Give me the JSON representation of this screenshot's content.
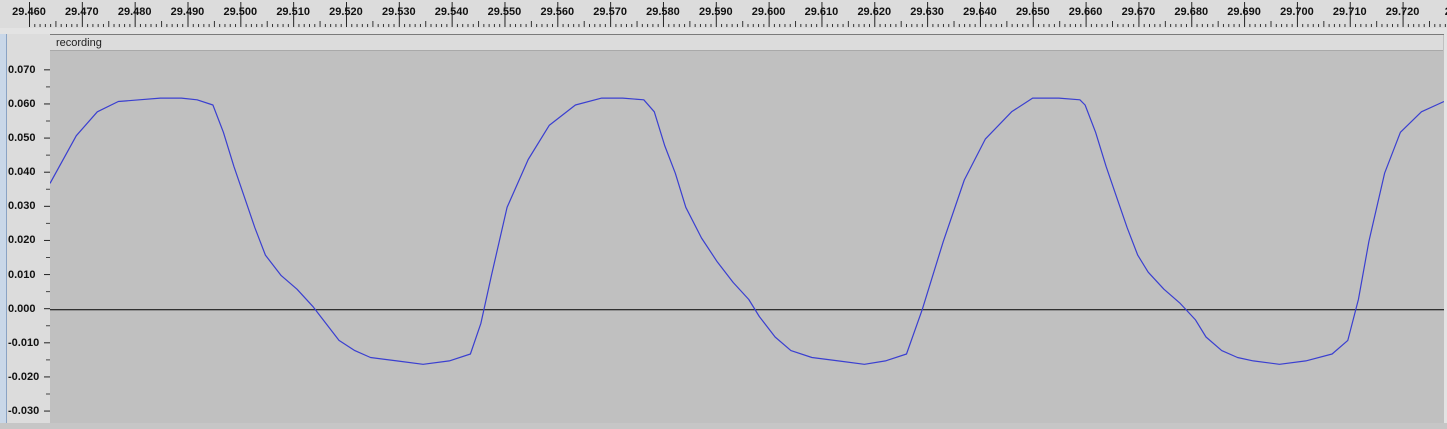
{
  "ruler": {
    "labels": [
      "29.460",
      "29.470",
      "29.480",
      "29.490",
      "29.500",
      "29.510",
      "29.520",
      "29.530",
      "29.540",
      "29.550",
      "29.560",
      "29.570",
      "29.580",
      "29.590",
      "29.600",
      "29.610",
      "29.620",
      "29.630",
      "29.640",
      "29.650",
      "29.660",
      "29.670",
      "29.680",
      "29.690",
      "29.700",
      "29.710",
      "29.720",
      "29.7"
    ]
  },
  "vertical_scale": {
    "labels": [
      "0.070",
      "0.060",
      "0.050",
      "0.040",
      "0.030",
      "0.020",
      "0.010",
      "0.000",
      "-0.010",
      "-0.020",
      "-0.030"
    ]
  },
  "track": {
    "name": "recording",
    "waveform_color": "#3a3fd0",
    "background_color": "#c0c0c0",
    "zero_line_color": "#000000"
  },
  "chart_data": {
    "type": "line",
    "xlim": [
      29.459,
      29.7243
    ],
    "ylim": [
      -0.0335,
      0.0805
    ],
    "x": [
      29.459,
      29.464,
      29.468,
      29.472,
      29.476,
      29.48,
      29.484,
      29.487,
      29.49,
      29.492,
      29.494,
      29.496,
      29.498,
      29.5,
      29.503,
      29.506,
      29.509,
      29.511,
      29.514,
      29.517,
      29.52,
      29.525,
      29.53,
      29.535,
      29.539,
      29.541,
      29.543,
      29.546,
      29.55,
      29.554,
      29.559,
      29.564,
      29.568,
      29.572,
      29.574,
      29.576,
      29.578,
      29.58,
      29.583,
      29.586,
      29.589,
      29.592,
      29.594,
      29.597,
      29.6,
      29.604,
      29.609,
      29.614,
      29.618,
      29.622,
      29.625,
      29.629,
      29.633,
      29.637,
      29.642,
      29.646,
      29.651,
      29.655,
      29.656,
      29.658,
      29.66,
      29.662,
      29.664,
      29.666,
      29.668,
      29.671,
      29.674,
      29.677,
      29.679,
      29.682,
      29.685,
      29.688,
      29.693,
      29.698,
      29.703,
      29.706,
      29.708,
      29.71,
      29.713,
      29.716,
      29.72,
      29.7243
    ],
    "y": [
      0.037,
      0.051,
      0.058,
      0.061,
      0.0615,
      0.062,
      0.062,
      0.0615,
      0.06,
      0.052,
      0.042,
      0.033,
      0.024,
      0.016,
      0.01,
      0.006,
      0.001,
      -0.003,
      -0.009,
      -0.012,
      -0.014,
      -0.015,
      -0.016,
      -0.015,
      -0.013,
      -0.004,
      0.01,
      0.03,
      0.044,
      0.054,
      0.06,
      0.062,
      0.062,
      0.0615,
      0.058,
      0.048,
      0.04,
      0.03,
      0.021,
      0.014,
      0.008,
      0.003,
      -0.002,
      -0.008,
      -0.012,
      -0.014,
      -0.015,
      -0.016,
      -0.015,
      -0.013,
      0.0,
      0.02,
      0.038,
      0.05,
      0.058,
      0.062,
      0.062,
      0.0615,
      0.06,
      0.052,
      0.042,
      0.033,
      0.024,
      0.016,
      0.011,
      0.006,
      0.002,
      -0.003,
      -0.008,
      -0.012,
      -0.014,
      -0.015,
      -0.016,
      -0.015,
      -0.013,
      -0.009,
      0.003,
      0.02,
      0.04,
      0.052,
      0.058,
      0.061
    ]
  }
}
